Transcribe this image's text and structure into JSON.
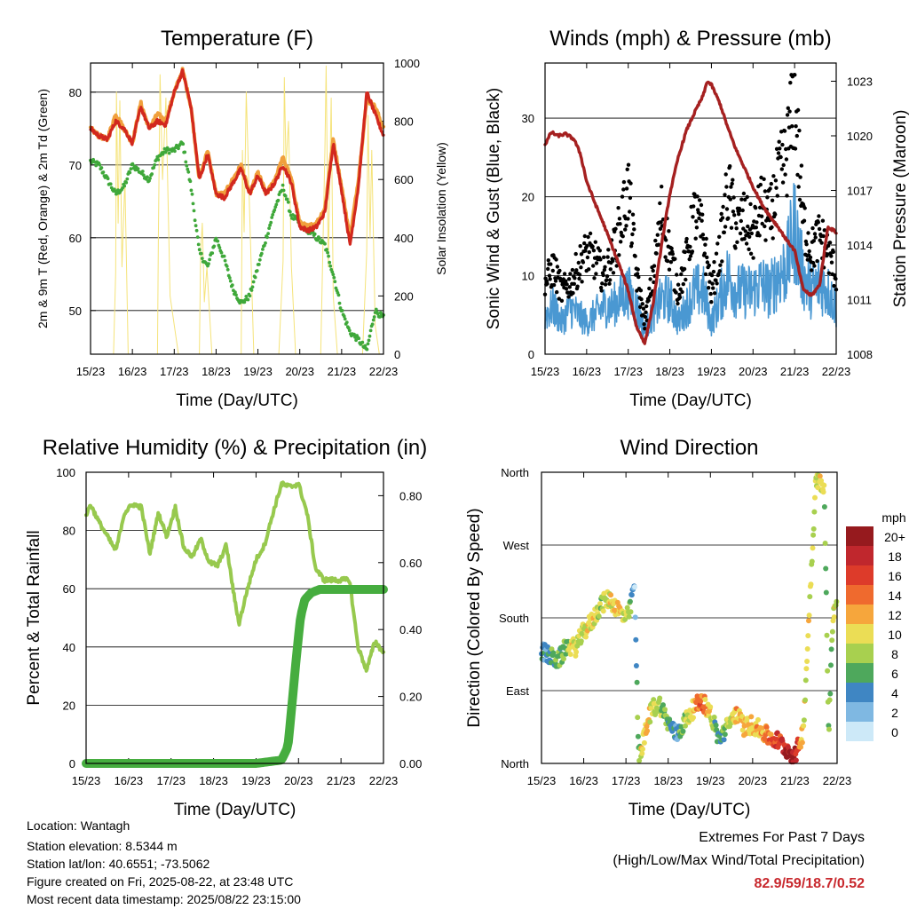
{
  "colors": {
    "temp_9m": "#f0a03c",
    "temp_2m": "#d2281e",
    "dewpoint": "#3fa83a",
    "solar": "#f5e37a",
    "sonic_wind": "#4a98d2",
    "gust": "#000000",
    "pressure": "#a52020",
    "rh": "#97c94e",
    "precip": "#46ad3f",
    "extremes": "#c8282d"
  },
  "info": {
    "location": "Location: Wantagh",
    "elevation": "Station elevation: 8.5344 m",
    "latlon": "Station lat/lon: 40.6551; -73.5062",
    "created": "Figure created on Fri, 2025-08-22, at 23:48 UTC",
    "recent": "Most recent data timestamp: 2025/08/22 23:15:00"
  },
  "extremes": {
    "title": "Extremes For Past 7 Days",
    "subtitle": "(High/Low/Max Wind/Total Precipitation)",
    "values": "82.9/59/18.7/0.52"
  },
  "chart_data": [
    {
      "id": "temperature",
      "type": "line",
      "title": "Temperature (F)",
      "xlabel": "Time (Day/UTC)",
      "ylabel": "2m & 9m T (Red, Orange) & 2m Td (Green)",
      "y2label": "Solar Insolation (Yellow)",
      "xticks": [
        "15/23",
        "16/23",
        "17/23",
        "18/23",
        "19/23",
        "20/23",
        "21/23",
        "22/23"
      ],
      "xlim": [
        0,
        7
      ],
      "ylim": [
        44,
        84
      ],
      "yticks": [
        50,
        60,
        70,
        80
      ],
      "y2lim": [
        0,
        1000
      ],
      "y2ticks": [
        0,
        200,
        400,
        600,
        800,
        1000
      ],
      "grid": "horizontal",
      "series": [
        {
          "key": "t9m",
          "axis": "left",
          "x": [
            0,
            0.2,
            0.4,
            0.6,
            0.8,
            1.0,
            1.2,
            1.4,
            1.6,
            1.8,
            2.0,
            2.2,
            2.4,
            2.6,
            2.8,
            3.0,
            3.2,
            3.4,
            3.6,
            3.8,
            4.0,
            4.2,
            4.4,
            4.6,
            4.8,
            5.0,
            5.2,
            5.4,
            5.6,
            5.8,
            6.0,
            6.2,
            6.4,
            6.6,
            6.8,
            7.0
          ],
          "y": [
            75,
            74,
            73.5,
            77,
            75,
            73,
            78.5,
            75,
            77,
            76,
            80,
            83,
            78,
            68,
            72,
            66,
            66,
            68,
            70,
            66,
            69,
            66,
            68,
            71,
            68,
            62,
            61.5,
            62,
            64,
            73.5,
            67,
            60,
            68,
            79,
            78,
            75
          ]
        },
        {
          "key": "t2m",
          "axis": "left",
          "x": [
            0,
            0.2,
            0.4,
            0.6,
            0.8,
            1.0,
            1.2,
            1.4,
            1.6,
            1.8,
            2.0,
            2.2,
            2.4,
            2.6,
            2.8,
            3.0,
            3.2,
            3.4,
            3.6,
            3.8,
            4.0,
            4.2,
            4.4,
            4.6,
            4.8,
            5.0,
            5.2,
            5.4,
            5.6,
            5.8,
            6.0,
            6.2,
            6.4,
            6.6,
            6.8,
            7.0
          ],
          "y": [
            75,
            74,
            73.5,
            76,
            75,
            73,
            78,
            75,
            76,
            75.5,
            80,
            82.9,
            78,
            68,
            71.5,
            66,
            65.5,
            67.5,
            69.5,
            66,
            68.5,
            66,
            67.5,
            70,
            67.5,
            61.5,
            61,
            61.5,
            63.5,
            73,
            66.5,
            59,
            67,
            80,
            77,
            74
          ]
        },
        {
          "key": "td",
          "axis": "left",
          "x": [
            0,
            0.2,
            0.4,
            0.6,
            0.8,
            1.0,
            1.2,
            1.4,
            1.6,
            1.8,
            2.0,
            2.2,
            2.4,
            2.6,
            2.8,
            3.0,
            3.2,
            3.4,
            3.6,
            3.8,
            4.0,
            4.2,
            4.4,
            4.6,
            4.8,
            5.0,
            5.2,
            5.4,
            5.6,
            5.8,
            6.0,
            6.2,
            6.4,
            6.6,
            6.8,
            7.0
          ],
          "y": [
            70.5,
            70,
            68,
            66,
            67,
            70,
            69,
            68,
            71,
            72,
            72,
            73,
            67,
            58,
            56,
            60,
            57,
            53,
            51,
            52,
            56,
            60,
            64,
            67,
            63,
            62,
            61,
            60,
            59,
            55,
            50,
            47,
            46,
            44.5,
            50,
            49
          ]
        },
        {
          "key": "solar",
          "axis": "right",
          "x": [
            0,
            0.55,
            0.6,
            0.62,
            0.66,
            0.7,
            0.75,
            0.82,
            0.9,
            1.2,
            1.6,
            1.62,
            1.66,
            1.72,
            1.8,
            1.9,
            2.1,
            2.5,
            2.6,
            2.63,
            2.67,
            2.72,
            2.78,
            2.9,
            3.5,
            3.6,
            3.63,
            3.67,
            3.72,
            3.8,
            3.9,
            4.2,
            4.5,
            4.6,
            4.63,
            4.67,
            4.73,
            4.8,
            4.9,
            5.2,
            5.5,
            5.6,
            5.63,
            5.68,
            5.75,
            5.8,
            5.9,
            6.3,
            6.5,
            6.6,
            6.63,
            6.68,
            6.72,
            6.8,
            6.9,
            7.0
          ],
          "y": [
            0,
            0,
            280,
            900,
            450,
            870,
            300,
            600,
            0,
            0,
            0,
            400,
            960,
            600,
            880,
            200,
            0,
            0,
            0,
            350,
            450,
            180,
            300,
            0,
            0,
            0,
            700,
            420,
            900,
            500,
            0,
            0,
            0,
            320,
            950,
            650,
            800,
            300,
            0,
            0,
            0,
            700,
            990,
            300,
            880,
            200,
            0,
            0,
            0,
            350,
            820,
            400,
            700,
            100,
            0,
            0
          ]
        }
      ]
    },
    {
      "id": "winds",
      "type": "scatter",
      "title": "Winds (mph) & Pressure (mb)",
      "xlabel": "Time (Day/UTC)",
      "ylabel": "Sonic Wind & Gust (Blue, Black)",
      "y2label": "Station Pressure (Maroon)",
      "xticks": [
        "15/23",
        "16/23",
        "17/23",
        "18/23",
        "19/23",
        "20/23",
        "21/23",
        "22/23"
      ],
      "xlim": [
        0,
        7
      ],
      "ylim": [
        0,
        37
      ],
      "yticks": [
        0,
        10,
        20,
        30
      ],
      "y2lim": [
        1008,
        1024
      ],
      "y2ticks": [
        1008,
        1011,
        1014,
        1017,
        1020,
        1023
      ],
      "grid": "horizontal",
      "series": [
        {
          "key": "gust",
          "axis": "left",
          "x": [
            0,
            0.2,
            0.4,
            0.6,
            0.8,
            1.0,
            1.2,
            1.4,
            1.6,
            1.8,
            2.0,
            2.2,
            2.4,
            2.6,
            2.8,
            3.0,
            3.2,
            3.4,
            3.6,
            3.8,
            4.0,
            4.2,
            4.4,
            4.6,
            4.8,
            5.0,
            5.2,
            5.4,
            5.6,
            5.8,
            6.0,
            6.2,
            6.4,
            6.6,
            6.8,
            7.0
          ],
          "y": [
            9,
            11,
            8,
            9,
            11,
            13,
            12,
            10,
            12,
            16,
            21,
            10,
            4,
            10,
            18,
            13,
            8,
            12,
            18,
            15,
            8,
            13,
            21,
            16,
            17,
            15,
            19,
            17,
            22,
            25,
            33,
            17,
            13,
            15,
            13,
            10
          ]
        },
        {
          "key": "sonic",
          "axis": "left",
          "x": [
            0,
            0.2,
            0.4,
            0.6,
            0.8,
            1.0,
            1.2,
            1.4,
            1.6,
            1.8,
            2.0,
            2.2,
            2.4,
            2.6,
            2.8,
            3.0,
            3.2,
            3.4,
            3.6,
            3.8,
            4.0,
            4.2,
            4.4,
            4.6,
            4.8,
            5.0,
            5.2,
            5.4,
            5.6,
            5.8,
            6.0,
            6.2,
            6.4,
            6.6,
            6.8,
            7.0
          ],
          "y": [
            5,
            6,
            4,
            6,
            5,
            4,
            5,
            6,
            6,
            7,
            8,
            6,
            3,
            5,
            7,
            7,
            4,
            6,
            8,
            8,
            4,
            7,
            10,
            8,
            8,
            8,
            9,
            8,
            10,
            11,
            16,
            10,
            8,
            9,
            8,
            6
          ]
        },
        {
          "key": "pressure",
          "axis": "right",
          "x": [
            0,
            0.15,
            0.3,
            0.5,
            0.7,
            0.85,
            1.0,
            1.2,
            1.4,
            1.6,
            1.8,
            2.0,
            2.2,
            2.4,
            2.6,
            2.8,
            3.0,
            3.2,
            3.4,
            3.6,
            3.8,
            3.9,
            4.0,
            4.2,
            4.4,
            4.6,
            4.8,
            5.0,
            5.2,
            5.4,
            5.6,
            5.8,
            6.0,
            6.2,
            6.4,
            6.6,
            6.8,
            7.0
          ],
          "y": [
            1019.5,
            1020.2,
            1020.0,
            1020.1,
            1019.8,
            1019.0,
            1017.5,
            1016.3,
            1015.2,
            1014.0,
            1012.8,
            1011.5,
            1009.5,
            1008.6,
            1010.8,
            1014.0,
            1016.8,
            1018.8,
            1020.3,
            1021.3,
            1022.2,
            1023.0,
            1022.8,
            1021.8,
            1020.4,
            1019.2,
            1018.2,
            1017.2,
            1016.3,
            1015.6,
            1015.0,
            1014.3,
            1013.7,
            1011.6,
            1011.2,
            1011.8,
            1015.0,
            1014.7
          ]
        }
      ]
    },
    {
      "id": "humidity",
      "type": "line",
      "title": "Relative Humidity (%) & Precipitation (in)",
      "xlabel": "Time (Day/UTC)",
      "ylabel": "Percent & Total Rainfall",
      "xticks": [
        "15/23",
        "16/23",
        "17/23",
        "18/23",
        "19/23",
        "20/23",
        "21/23",
        "22/23"
      ],
      "xlim": [
        0,
        7
      ],
      "ylim": [
        0,
        100
      ],
      "yticks": [
        0,
        20,
        40,
        60,
        80,
        100
      ],
      "y2lim": [
        0,
        0.87
      ],
      "y2ticks": [
        "0.00",
        "0.20",
        "0.40",
        "0.60",
        "0.80"
      ],
      "grid": "horizontal",
      "series": [
        {
          "key": "rh",
          "axis": "left",
          "x": [
            0,
            0.1,
            0.3,
            0.5,
            0.7,
            0.9,
            1.1,
            1.3,
            1.5,
            1.7,
            1.9,
            2.1,
            2.3,
            2.5,
            2.7,
            2.9,
            3.1,
            3.3,
            3.5,
            3.6,
            3.8,
            4.0,
            4.2,
            4.4,
            4.6,
            4.8,
            5.0,
            5.2,
            5.4,
            5.6,
            5.8,
            6.0,
            6.2,
            6.4,
            6.6,
            6.8,
            7.0
          ],
          "y": [
            85,
            89,
            83,
            78,
            73,
            86,
            89,
            88,
            72,
            86,
            78,
            88,
            74,
            71,
            77,
            69,
            68,
            75,
            56,
            48,
            60,
            70,
            75,
            86,
            96,
            95,
            96,
            86,
            67,
            63,
            63,
            63,
            63,
            40,
            32,
            42,
            38
          ]
        },
        {
          "key": "precip",
          "axis": "right",
          "x": [
            0,
            1.0,
            2.0,
            3.0,
            4.0,
            4.6,
            4.75,
            4.85,
            4.95,
            5.05,
            5.15,
            5.3,
            5.5,
            6.0,
            6.5,
            7.0
          ],
          "y": [
            0,
            0,
            0,
            0,
            0,
            0.01,
            0.05,
            0.18,
            0.32,
            0.44,
            0.49,
            0.51,
            0.52,
            0.52,
            0.52,
            0.52
          ]
        }
      ]
    },
    {
      "id": "wind_direction",
      "type": "scatter",
      "title": "Wind Direction",
      "xlabel": "Time (Day/UTC)",
      "ylabel": "Direction (Colored By Speed)",
      "xticks": [
        "15/23",
        "16/23",
        "17/23",
        "18/23",
        "19/23",
        "20/23",
        "21/23",
        "22/23"
      ],
      "xlim": [
        0,
        7
      ],
      "ylim": [
        0,
        360
      ],
      "yticks": [
        "North",
        "East",
        "South",
        "West",
        "North"
      ],
      "grid": "horizontal",
      "colorbar": {
        "unit": "mph",
        "labels": [
          "20+",
          "18",
          "16",
          "14",
          "12",
          "10",
          "8",
          "6",
          "4",
          "2",
          "0"
        ],
        "colors": [
          "#961a1e",
          "#c0272d",
          "#dd3b2a",
          "#ef6a2e",
          "#f6a63c",
          "#ebdd55",
          "#a8d04f",
          "#4ea85c",
          "#3f86c3",
          "#7fb8e2",
          "#cde9f8"
        ]
      },
      "series": [
        {
          "key": "direction",
          "x": [
            0,
            0.2,
            0.4,
            0.6,
            0.8,
            1.0,
            1.2,
            1.4,
            1.6,
            1.8,
            2.0,
            2.05,
            2.1,
            2.15,
            2.2,
            2.3,
            2.4,
            2.5,
            2.6,
            2.8,
            3.0,
            3.2,
            3.4,
            3.6,
            3.8,
            4.0,
            4.2,
            4.4,
            4.6,
            4.8,
            5.0,
            5.2,
            5.4,
            5.6,
            5.8,
            6.0,
            6.2,
            6.5,
            6.6,
            6.7,
            6.8,
            6.9,
            7.0
          ],
          "y": [
            140,
            132,
            127,
            146,
            143,
            163,
            176,
            196,
            204,
            191,
            178,
            184,
            190,
            210,
            225,
            10,
            25,
            45,
            68,
            73,
            50,
            35,
            52,
            68,
            78,
            62,
            30,
            45,
            62,
            45,
            48,
            40,
            32,
            28,
            18,
            8,
            40,
            355,
            345,
            335,
            35,
            185,
            200
          ],
          "speed": [
            4,
            5,
            6,
            8,
            10,
            9,
            10,
            8,
            9,
            11,
            10,
            9,
            6,
            4,
            2,
            8,
            10,
            12,
            9,
            8,
            6,
            4,
            8,
            12,
            14,
            10,
            4,
            8,
            12,
            11,
            11,
            12,
            14,
            16,
            18,
            19,
            10,
            9,
            10,
            8,
            6,
            9,
            10
          ]
        }
      ]
    }
  ]
}
